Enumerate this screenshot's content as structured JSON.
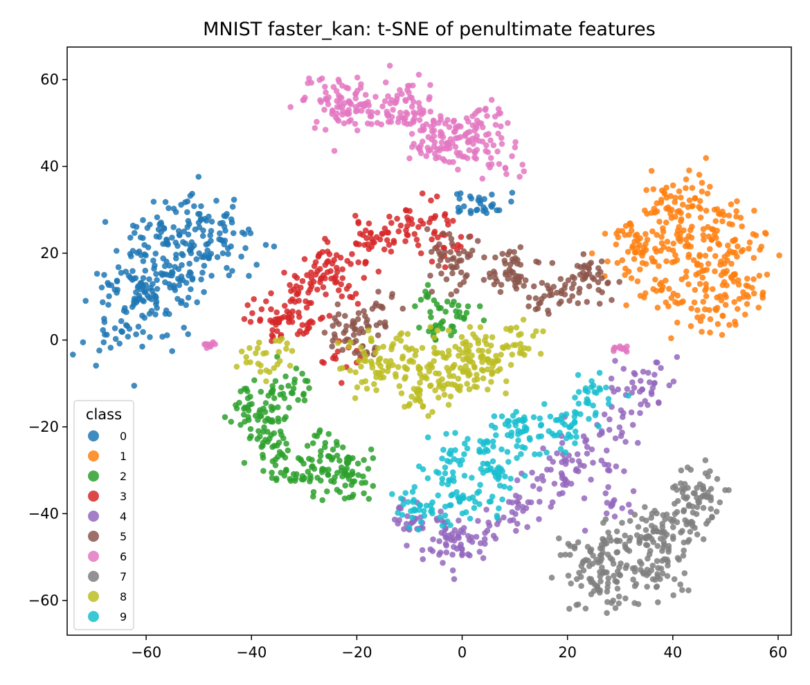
{
  "chart_data": {
    "type": "scatter",
    "title": "MNIST faster_kan: t-SNE of penultimate features",
    "xlabel": "",
    "ylabel": "",
    "xlim": [
      -75,
      62.5
    ],
    "ylim": [
      -68,
      67.5
    ],
    "x_ticks": [
      -60,
      -40,
      -20,
      0,
      20,
      40,
      60
    ],
    "y_ticks": [
      -60,
      -40,
      -20,
      0,
      20,
      40,
      60
    ],
    "x_tick_labels": [
      "−60",
      "−40",
      "−20",
      "0",
      "20",
      "40",
      "60"
    ],
    "y_tick_labels": [
      "−60",
      "−40",
      "−20",
      "0",
      "20",
      "40",
      "60"
    ],
    "grid": false,
    "legend": {
      "title": "class",
      "placement": "lower-left"
    },
    "series": [
      {
        "name": "0",
        "color": "#1f77b4",
        "clusters": [
          {
            "points": [
              [
                -66,
                0
              ],
              [
                -62,
                10
              ],
              [
                -58,
                18
              ],
              [
                -54,
                25
              ],
              [
                -50,
                27
              ],
              [
                -45,
                24
              ],
              [
                -60,
                5
              ],
              [
                -56,
                13
              ],
              [
                -52,
                20
              ],
              [
                -48,
                22
              ],
              [
                -63,
                15
              ],
              [
                -59,
                24
              ],
              [
                -65,
                5
              ],
              [
                -57,
                8
              ],
              [
                -53,
                15
              ]
            ],
            "sx": 3.6,
            "sy": 4.2,
            "n": 300
          },
          {
            "points": [
              [
                1,
                32
              ],
              [
                4,
                31
              ],
              [
                7,
                31
              ]
            ],
            "sx": 1.7,
            "sy": 1.3,
            "n": 30
          }
        ]
      },
      {
        "name": "1",
        "color": "#ff7f0e",
        "clusters": [
          {
            "points": [
              [
                42,
                30
              ],
              [
                48,
                28
              ],
              [
                52,
                22
              ],
              [
                53,
                14
              ],
              [
                50,
                7
              ],
              [
                44,
                6
              ],
              [
                38,
                12
              ],
              [
                35,
                20
              ],
              [
                38,
                26
              ],
              [
                44,
                20
              ],
              [
                46,
                14
              ],
              [
                32,
                22
              ],
              [
                40,
                33
              ]
            ],
            "sx": 3.2,
            "sy": 3.2,
            "n": 330
          }
        ]
      },
      {
        "name": "2",
        "color": "#2ca02c",
        "clusters": [
          {
            "points": [
              [
                -40,
                -16
              ],
              [
                -38,
                -23
              ],
              [
                -35,
                -28
              ],
              [
                -30,
                -30
              ],
              [
                -25,
                -31
              ],
              [
                -20,
                -29
              ],
              [
                -35,
                -14
              ],
              [
                -32,
                -10
              ],
              [
                -27,
                -26
              ],
              [
                -22,
                -33
              ],
              [
                -37,
                -19
              ]
            ],
            "sx": 2.4,
            "sy": 2.4,
            "n": 230
          },
          {
            "points": [
              [
                -7,
                10
              ],
              [
                -4,
                7
              ],
              [
                -1,
                4
              ],
              [
                1,
                7
              ],
              [
                -5,
                2
              ]
            ],
            "sx": 1.8,
            "sy": 1.8,
            "n": 45
          }
        ]
      },
      {
        "name": "3",
        "color": "#d62728",
        "clusters": [
          {
            "points": [
              [
                -36,
                7
              ],
              [
                -31,
                11
              ],
              [
                -27,
                16
              ],
              [
                -22,
                20
              ],
              [
                -17,
                23
              ],
              [
                -12,
                25
              ],
              [
                -7,
                27
              ],
              [
                -3,
                24
              ],
              [
                -24,
                12
              ],
              [
                -29,
                3
              ],
              [
                -35,
                4
              ]
            ],
            "sx": 2.6,
            "sy": 2.6,
            "n": 230
          },
          {
            "points": [
              [
                -25,
                -4
              ],
              [
                -21,
                -4
              ]
            ],
            "sx": 1.5,
            "sy": 1.5,
            "n": 12
          }
        ]
      },
      {
        "name": "4",
        "color": "#9467bd",
        "clusters": [
          {
            "points": [
              [
                -10,
                -42
              ],
              [
                -4,
                -45
              ],
              [
                2,
                -46
              ],
              [
                7,
                -43
              ],
              [
                12,
                -38
              ],
              [
                17,
                -33
              ],
              [
                20,
                -27
              ],
              [
                23,
                -24
              ],
              [
                26,
                -30
              ],
              [
                28,
                -38
              ],
              [
                33,
                -13
              ],
              [
                36,
                -10
              ],
              [
                30,
                -20
              ],
              [
                -1,
                -48
              ]
            ],
            "sx": 2.6,
            "sy": 2.6,
            "n": 250
          }
        ]
      },
      {
        "name": "5",
        "color": "#8c564b",
        "clusters": [
          {
            "points": [
              [
                -22,
                4
              ],
              [
                -17,
                6
              ],
              [
                -19,
                0
              ]
            ],
            "sx": 2.6,
            "sy": 2.4,
            "n": 65
          },
          {
            "points": [
              [
                -4,
                22
              ],
              [
                -2,
                18
              ],
              [
                1,
                20
              ],
              [
                -2,
                15
              ]
            ],
            "sx": 2.0,
            "sy": 2.2,
            "n": 45
          },
          {
            "points": [
              [
                8,
                15
              ],
              [
                12,
                13
              ],
              [
                15,
                10
              ],
              [
                18,
                12
              ],
              [
                22,
                14
              ],
              [
                25,
                15
              ],
              [
                11,
                18
              ]
            ],
            "sx": 2.4,
            "sy": 2.4,
            "n": 120
          }
        ]
      },
      {
        "name": "6",
        "color": "#e377c2",
        "clusters": [
          {
            "points": [
              [
                -26,
                57
              ],
              [
                -20,
                55
              ],
              [
                -14,
                52
              ],
              [
                -8,
                50
              ],
              [
                -3,
                47
              ],
              [
                2,
                44
              ],
              [
                7,
                42
              ],
              [
                -23,
                52
              ],
              [
                -10,
                55
              ],
              [
                -5,
                45
              ],
              [
                3,
                50
              ]
            ],
            "sx": 2.6,
            "sy": 2.6,
            "n": 300
          },
          {
            "points": [
              [
                -48,
                -1
              ]
            ],
            "sx": 0.6,
            "sy": 0.4,
            "n": 10
          },
          {
            "points": [
              [
                30,
                -2
              ]
            ],
            "sx": 1.4,
            "sy": 0.6,
            "n": 12
          }
        ]
      },
      {
        "name": "7",
        "color": "#7f7f7f",
        "clusters": [
          {
            "points": [
              [
                22,
                -57
              ],
              [
                27,
                -52
              ],
              [
                32,
                -47
              ],
              [
                37,
                -42
              ],
              [
                42,
                -40
              ],
              [
                46,
                -38
              ],
              [
                40,
                -47
              ],
              [
                35,
                -52
              ],
              [
                28,
                -57
              ],
              [
                44,
                -34
              ],
              [
                38,
                -55
              ],
              [
                24,
                -48
              ]
            ],
            "sx": 2.6,
            "sy": 2.6,
            "n": 300
          }
        ]
      },
      {
        "name": "8",
        "color": "#bcbd22",
        "clusters": [
          {
            "points": [
              [
                -16,
                -9
              ],
              [
                -11,
                -6
              ],
              [
                -6,
                -8
              ],
              [
                -1,
                -9
              ],
              [
                4,
                -7
              ],
              [
                8,
                -3
              ],
              [
                12,
                -1
              ],
              [
                -13,
                -2
              ],
              [
                -18,
                -4
              ],
              [
                -8,
                -12
              ],
              [
                3,
                -2
              ],
              [
                -4,
                -3
              ]
            ],
            "sx": 2.6,
            "sy": 2.6,
            "n": 260
          },
          {
            "points": [
              [
                -40,
                -4
              ],
              [
                -35,
                -2
              ],
              [
                -37,
                -6
              ]
            ],
            "sx": 1.8,
            "sy": 1.4,
            "n": 28
          }
        ]
      },
      {
        "name": "9",
        "color": "#17becf",
        "clusters": [
          {
            "points": [
              [
                -8,
                -36
              ],
              [
                -3,
                -31
              ],
              [
                0,
                -26
              ],
              [
                5,
                -28
              ],
              [
                9,
                -21
              ],
              [
                12,
                -20
              ],
              [
                15,
                -24
              ],
              [
                20,
                -20
              ],
              [
                23,
                -15
              ],
              [
                26,
                -12
              ],
              [
                -6,
                -40
              ],
              [
                2,
                -36
              ],
              [
                7,
                -32
              ]
            ],
            "sx": 2.6,
            "sy": 2.6,
            "n": 250
          }
        ]
      }
    ]
  }
}
